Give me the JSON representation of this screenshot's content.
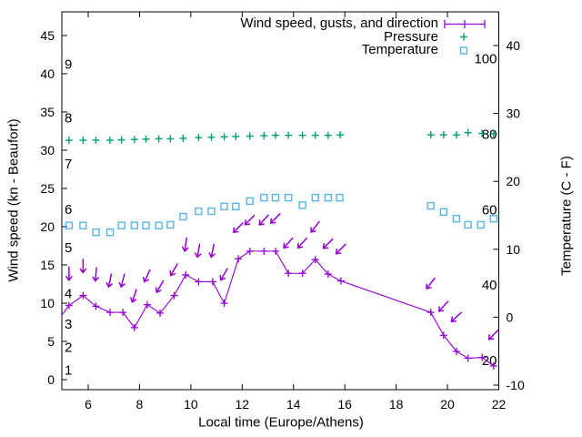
{
  "figure": {
    "background": "#ffffff",
    "frame_color": "#000000"
  },
  "chart_data": {
    "type": "line",
    "title": "Wind speed, gusts, and direction",
    "legend": [
      {
        "label": "Wind speed, gusts, and direction",
        "color": "#9400d3",
        "symbol": "errorbar-line-with-plus"
      },
      {
        "label": "Pressure",
        "color": "#009e73",
        "symbol": "plus"
      },
      {
        "label": "Temperature",
        "color": "#56b4e9",
        "symbol": "open-square"
      }
    ],
    "x_axis": {
      "label": "Local time (Europe/Athens)",
      "ticks": [
        6,
        8,
        10,
        12,
        14,
        16,
        18,
        20,
        22
      ],
      "range": [
        4.97,
        22
      ]
    },
    "y_axis_left": {
      "label": "Wind speed (kn - Beaufort)",
      "ticks": [
        0,
        5,
        10,
        15,
        20,
        25,
        30,
        35,
        40,
        45
      ],
      "range": [
        -1.31,
        48.1
      ]
    },
    "y_axis_right": {
      "label": "Temperature (C - F)",
      "ticks": [
        -10,
        0,
        10,
        20,
        30,
        40
      ],
      "range": [
        -10.72,
        45.0
      ]
    },
    "beaufort_scale_labels": [
      {
        "beaufort": "1",
        "at_kn": 1
      },
      {
        "beaufort": "2",
        "at_kn": 4
      },
      {
        "beaufort": "3",
        "at_kn": 7
      },
      {
        "beaufort": "4",
        "at_kn": 11
      },
      {
        "beaufort": "5",
        "at_kn": 17
      },
      {
        "beaufort": "6",
        "at_kn": 22
      },
      {
        "beaufort": "7",
        "at_kn": 28
      },
      {
        "beaufort": "8",
        "at_kn": 34
      },
      {
        "beaufort": "9",
        "at_kn": 41
      }
    ],
    "fahrenheit_scale_labels": [
      20,
      40,
      60,
      80,
      100
    ],
    "series": {
      "wind": {
        "name": "Wind speed, gusts, and direction",
        "color": "#9400d3",
        "units": "knots",
        "point_format": "[local_time_h, speed_kn, gust_kn_or_null, arrow_rotation_deg (0=down, 45=down-left)]",
        "lead_in": [
          4.97,
          8.45
        ],
        "points": [
          [
            5.25,
            9.7,
            13.9,
            0
          ],
          [
            5.8,
            11.0,
            14.9,
            0
          ],
          [
            6.3,
            9.6,
            13.8,
            5
          ],
          [
            6.85,
            8.8,
            13.0,
            12
          ],
          [
            7.35,
            8.8,
            13.0,
            15
          ],
          [
            7.8,
            6.8,
            11.0,
            18
          ],
          [
            8.3,
            9.8,
            13.6,
            25
          ],
          [
            8.8,
            8.7,
            12.2,
            30
          ],
          [
            9.35,
            11.0,
            14.4,
            30
          ],
          [
            9.8,
            13.7,
            17.7,
            8
          ],
          [
            10.3,
            12.8,
            16.9,
            10
          ],
          [
            10.85,
            12.8,
            16.9,
            12
          ],
          [
            11.3,
            10.0,
            13.8,
            30
          ],
          [
            11.85,
            15.8,
            19.9,
            45
          ],
          [
            12.3,
            16.8,
            20.9,
            45
          ],
          [
            12.85,
            16.8,
            20.9,
            42
          ],
          [
            13.3,
            16.8,
            21.1,
            45
          ],
          [
            13.8,
            13.9,
            17.9,
            42
          ],
          [
            14.35,
            13.9,
            17.9,
            42
          ],
          [
            14.85,
            15.7,
            20.0,
            38
          ],
          [
            15.35,
            13.8,
            17.8,
            45
          ],
          [
            15.85,
            12.9,
            17.1,
            45
          ],
          [
            19.35,
            8.8,
            12.6,
            38
          ],
          [
            19.85,
            5.8,
            9.6,
            42
          ],
          [
            20.35,
            3.7,
            8.2,
            48
          ],
          [
            20.8,
            2.8,
            null,
            null
          ],
          [
            21.35,
            2.9,
            null,
            null
          ],
          [
            21.8,
            1.8,
            5.9,
            45
          ]
        ]
      },
      "pressure": {
        "name": "Pressure",
        "color": "#009e73",
        "units": "no numeric pressure scale shown; values are plotted height on the left axis (kn units)",
        "points": [
          [
            5.25,
            31.3
          ],
          [
            5.8,
            31.3
          ],
          [
            6.3,
            31.3
          ],
          [
            6.85,
            31.3
          ],
          [
            7.3,
            31.35
          ],
          [
            7.8,
            31.4
          ],
          [
            8.25,
            31.45
          ],
          [
            8.75,
            31.5
          ],
          [
            9.2,
            31.5
          ],
          [
            9.7,
            31.55
          ],
          [
            10.3,
            31.65
          ],
          [
            10.8,
            31.7
          ],
          [
            11.3,
            31.75
          ],
          [
            11.75,
            31.8
          ],
          [
            12.3,
            31.85
          ],
          [
            12.85,
            31.9
          ],
          [
            13.3,
            31.95
          ],
          [
            13.8,
            31.95
          ],
          [
            14.35,
            31.95
          ],
          [
            14.85,
            31.95
          ],
          [
            15.35,
            31.95
          ],
          [
            15.82,
            32.0
          ],
          [
            19.35,
            32.0
          ],
          [
            19.85,
            32.0
          ],
          [
            20.35,
            32.0
          ],
          [
            20.8,
            32.3
          ],
          [
            21.35,
            32.2
          ],
          [
            21.8,
            32.15
          ]
        ]
      },
      "temperature": {
        "name": "Temperature",
        "color": "#56b4e9",
        "units": "degrees C (right axis)",
        "points_c": [
          [
            5.25,
            13.5
          ],
          [
            5.8,
            13.5
          ],
          [
            6.3,
            12.5
          ],
          [
            6.85,
            12.5
          ],
          [
            7.3,
            13.5
          ],
          [
            7.8,
            13.5
          ],
          [
            8.25,
            13.5
          ],
          [
            8.75,
            13.5
          ],
          [
            9.2,
            13.6
          ],
          [
            9.7,
            14.8
          ],
          [
            10.3,
            15.6
          ],
          [
            10.8,
            15.6
          ],
          [
            11.3,
            16.3
          ],
          [
            11.75,
            16.3
          ],
          [
            12.3,
            17.1
          ],
          [
            12.85,
            17.6
          ],
          [
            13.3,
            17.6
          ],
          [
            13.8,
            17.6
          ],
          [
            14.35,
            16.5
          ],
          [
            14.85,
            17.6
          ],
          [
            15.35,
            17.6
          ],
          [
            15.8,
            17.6
          ],
          [
            19.35,
            16.4
          ],
          [
            19.85,
            15.5
          ],
          [
            20.35,
            14.5
          ],
          [
            20.8,
            13.6
          ],
          [
            21.3,
            13.6
          ],
          [
            21.8,
            14.5
          ]
        ]
      }
    }
  }
}
